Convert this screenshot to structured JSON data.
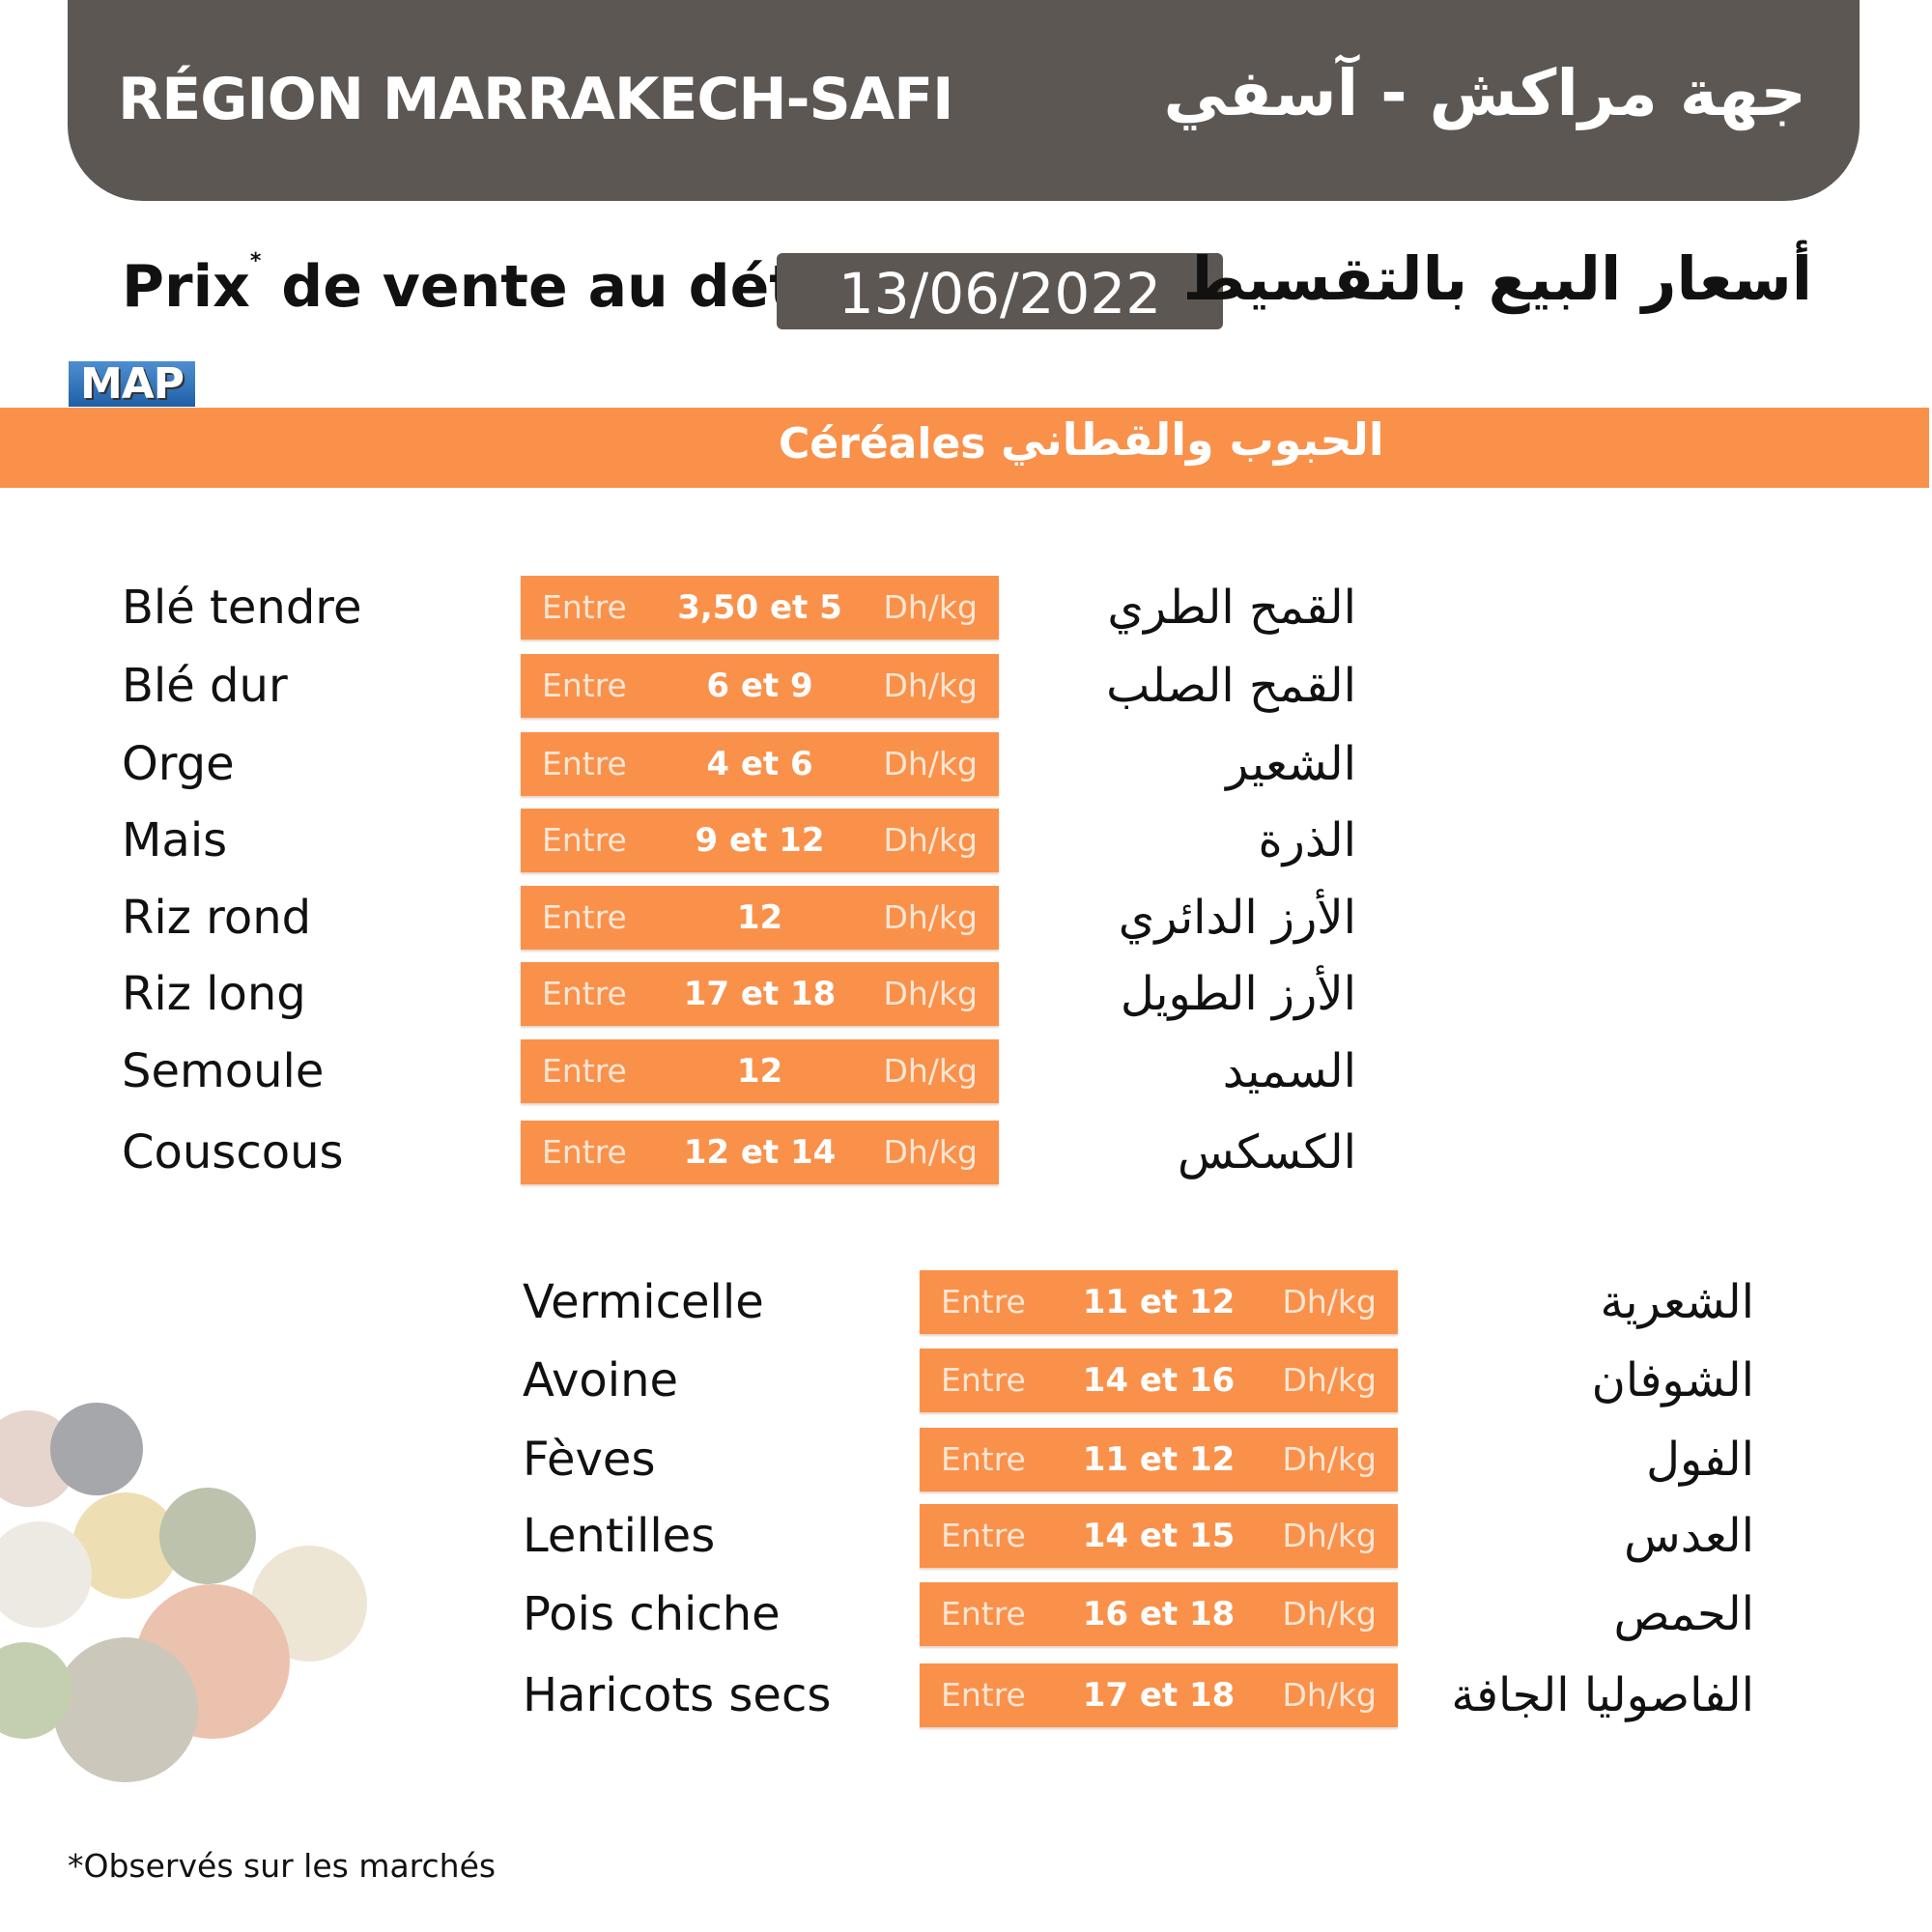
{
  "header": {
    "title_fr": "RÉGION MARRAKECH-SAFI",
    "title_ar": "جهة مراكش - آسفي"
  },
  "subtitle": {
    "fr": "Prix",
    "fr_mark": "*",
    "fr_rest": " de vente au détail",
    "date": "13/06/2022",
    "ar": "أسعار البيع بالتقسيط"
  },
  "logo": "MAP",
  "category": {
    "fr": "Céréales",
    "ar": "الحبوب والقطاني"
  },
  "colors": {
    "orange": "#f9914b",
    "header_gray": "#5d5753"
  },
  "list1": [
    {
      "fr": "Blé tendre",
      "entre": "Entre",
      "value": "3,50 et 5",
      "unit": "Dh/kg",
      "ar": "القمح الطري"
    },
    {
      "fr": "Blé dur",
      "entre": "Entre",
      "value": "6 et 9",
      "unit": "Dh/kg",
      "ar": "القمح الصلب"
    },
    {
      "fr": "Orge",
      "entre": "Entre",
      "value": "4 et 6",
      "unit": "Dh/kg",
      "ar": "الشعير"
    },
    {
      "fr": "Mais",
      "entre": "Entre",
      "value": "9 et 12",
      "unit": "Dh/kg",
      "ar": "الذرة"
    },
    {
      "fr": "Riz rond",
      "entre": "Entre",
      "value": "12",
      "unit": "Dh/kg",
      "ar": "الأرز الدائري"
    },
    {
      "fr": "Riz long",
      "entre": "Entre",
      "value": "17 et 18",
      "unit": "Dh/kg",
      "ar": "الأرز الطويل"
    },
    {
      "fr": "Semoule",
      "entre": "Entre",
      "value": "12",
      "unit": "Dh/kg",
      "ar": "السميد"
    },
    {
      "fr": "Couscous",
      "entre": "Entre",
      "value": "12 et 14",
      "unit": "Dh/kg",
      "ar": "الكسكس"
    }
  ],
  "list2": [
    {
      "fr": "Vermicelle",
      "entre": "Entre",
      "value": "11 et 12",
      "unit": "Dh/kg",
      "ar": "الشعرية"
    },
    {
      "fr": "Avoine",
      "entre": "Entre",
      "value": "14 et 16",
      "unit": "Dh/kg",
      "ar": "الشوفان"
    },
    {
      "fr": "Fèves",
      "entre": "Entre",
      "value": "11 et 12",
      "unit": "Dh/kg",
      "ar": "الفول"
    },
    {
      "fr": "Lentilles",
      "entre": "Entre",
      "value": "14 et 15",
      "unit": "Dh/kg",
      "ar": "العدس"
    },
    {
      "fr": "Pois chiche",
      "entre": "Entre",
      "value": "16 et 18",
      "unit": "Dh/kg",
      "ar": "الحمص"
    },
    {
      "fr": "Haricots secs",
      "entre": "Entre",
      "value": "17 et 18",
      "unit": "Dh/kg",
      "ar": "الفاصوليا الجافة"
    }
  ],
  "footer": "*Observés sur les marchés"
}
